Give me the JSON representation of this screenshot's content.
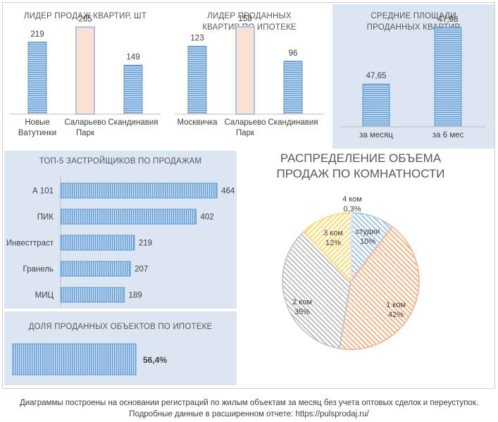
{
  "colors": {
    "bar_blue": "#5b9bd5",
    "bar_peach": "#fbe1d2",
    "panel_blue": "#dce6f2",
    "pie_studios": "#9dc3e6",
    "pie_1k": "#f4b183",
    "pie_2k": "#bfbfbf",
    "pie_3k": "#ffd966",
    "pie_4k": "#dce6f2"
  },
  "chart_data": [
    {
      "type": "bar",
      "title": "ЛИДЕР ПРОДАЖ  КВАРТИР, ШТ",
      "categories": [
        "Новые Ватутинки",
        "Саларьево Парк",
        "Скандинавия"
      ],
      "values": [
        219,
        265,
        149
      ],
      "value_labels": [
        "219",
        "265",
        "149"
      ],
      "highlight_index": 1,
      "ylim": [
        0,
        300
      ]
    },
    {
      "type": "bar",
      "title": "ЛИДЕР ПРОДАННЫХ КВАРТИР ПО ИПОТЕКЕ",
      "categories": [
        "Москвичка",
        "Саларьево Парк",
        "Скандинавия"
      ],
      "values": [
        123,
        158,
        96
      ],
      "value_labels": [
        "123",
        "158",
        "96"
      ],
      "highlight_index": 1,
      "ylim": [
        0,
        180
      ]
    },
    {
      "type": "bar",
      "title": "СРЕДНИЕ ПЛОЩАДИ ПРОДАННЫХ КВАРТИР",
      "categories": [
        "за месяц",
        "за 6 мес"
      ],
      "values": [
        47.65,
        47.98
      ],
      "value_labels": [
        "47,65",
        "47,98"
      ],
      "ylim": [
        47.4,
        48.05
      ]
    },
    {
      "type": "bar",
      "orientation": "horizontal",
      "title": "ТОП-5 ЗАСТРОЙЩИКОВ ПО ПРОДАЖАМ",
      "categories": [
        "А 101",
        "ПИК",
        "Инвесттраст",
        "Гранель",
        "МИЦ"
      ],
      "values": [
        464,
        402,
        219,
        207,
        189
      ],
      "value_labels": [
        "464",
        "402",
        "219",
        "207",
        "189"
      ],
      "xlim": [
        0,
        470
      ]
    },
    {
      "type": "bar",
      "orientation": "horizontal",
      "title": "ДОЛЯ ПРОДАННЫХ ОБЪЕКТОВ ПО ИПОТЕКЕ",
      "values": [
        56.4
      ],
      "value_labels": [
        "56,4%"
      ],
      "xlim": [
        0,
        56.4
      ]
    },
    {
      "type": "pie",
      "title": "РАСПРЕДЕЛЕНИЕ ОБЪЕМА ПРОДАЖ ПО КОМНАТНОСТИ",
      "slices": [
        {
          "name": "студии",
          "value": 10,
          "label": "10%",
          "color": "#9dc3e6"
        },
        {
          "name": "1 ком",
          "value": 42,
          "label": "42%",
          "color": "#f4b183"
        },
        {
          "name": "2 ком",
          "value": 35,
          "label": "35%",
          "color": "#bfbfbf"
        },
        {
          "name": "3 ком",
          "value": 12,
          "label": "12%",
          "color": "#ffd966"
        },
        {
          "name": "4 ком",
          "value": 0.3,
          "label": "0,3%",
          "color": "#dce6f2"
        }
      ]
    }
  ],
  "footer": {
    "line1": "Диаграммы построены на основании регистраций по жилым объектам за месяц без учета оптовых сделок и переуступок.",
    "line2": "Подробные данные в расширенном отчете: https://pulsprodaj.ru/"
  }
}
